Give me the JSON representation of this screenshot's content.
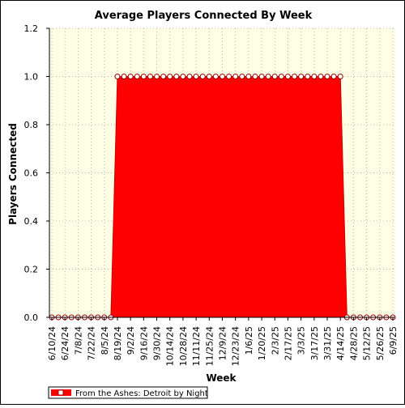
{
  "chart_data": {
    "type": "area",
    "title": "Average Players Connected By Week",
    "xlabel": "Week",
    "ylabel": "Players Connected",
    "ylim": [
      0,
      1.2
    ],
    "yticks": [
      "0.0",
      "0.2",
      "0.4",
      "0.6",
      "0.8",
      "1.0",
      "1.2"
    ],
    "grid": true,
    "legend_position": "bottom-left",
    "x_tick_labels": [
      "6/10/24",
      "6/24/24",
      "7/8/24",
      "7/22/24",
      "8/5/24",
      "8/19/24",
      "9/2/24",
      "9/16/24",
      "9/30/24",
      "10/14/24",
      "10/28/24",
      "11/11/24",
      "11/25/24",
      "12/9/24",
      "12/23/24",
      "1/6/25",
      "1/20/25",
      "2/3/25",
      "2/17/25",
      "3/3/25",
      "3/17/25",
      "3/31/25",
      "4/14/25",
      "4/28/25",
      "5/12/25",
      "5/26/25",
      "6/9/25"
    ],
    "x": [
      "6/10/24",
      "6/17/24",
      "6/24/24",
      "7/1/24",
      "7/8/24",
      "7/15/24",
      "7/22/24",
      "7/29/24",
      "8/5/24",
      "8/12/24",
      "8/19/24",
      "8/26/24",
      "9/2/24",
      "9/9/24",
      "9/16/24",
      "9/23/24",
      "9/30/24",
      "10/7/24",
      "10/14/24",
      "10/21/24",
      "10/28/24",
      "11/4/24",
      "11/11/24",
      "11/18/24",
      "11/25/24",
      "12/2/24",
      "12/9/24",
      "12/16/24",
      "12/23/24",
      "12/30/24",
      "1/6/25",
      "1/13/25",
      "1/20/25",
      "1/27/25",
      "2/3/25",
      "2/10/25",
      "2/17/25",
      "2/24/25",
      "3/3/25",
      "3/10/25",
      "3/17/25",
      "3/24/25",
      "3/31/25",
      "4/7/25",
      "4/14/25",
      "4/21/25",
      "4/28/25",
      "5/5/25",
      "5/12/25",
      "5/19/25",
      "5/26/25",
      "6/2/25",
      "6/9/25"
    ],
    "series": [
      {
        "name": "From the Ashes: Detroit by Night",
        "color": "#ff0000",
        "values": [
          0,
          0,
          0,
          0,
          0,
          0,
          0,
          0,
          0,
          0,
          1,
          1,
          1,
          1,
          1,
          1,
          1,
          1,
          1,
          1,
          1,
          1,
          1,
          1,
          1,
          1,
          1,
          1,
          1,
          1,
          1,
          1,
          1,
          1,
          1,
          1,
          1,
          1,
          1,
          1,
          1,
          1,
          1,
          1,
          1,
          0,
          0,
          0,
          0,
          0,
          0,
          0,
          0
        ]
      }
    ],
    "colors": {
      "plot_background": "#ffffe6",
      "grid": "#b4b4b4",
      "area": "#ff0000",
      "marker_stroke": "#990000"
    }
  }
}
